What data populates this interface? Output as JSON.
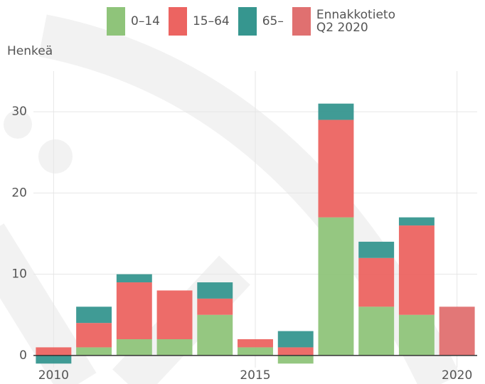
{
  "chart_data": {
    "type": "stacked-bar",
    "y_label": "Henkeä",
    "x": [
      2010,
      2011,
      2012,
      2013,
      2014,
      2015,
      2016,
      2017,
      2018,
      2019,
      2020
    ],
    "series": [
      {
        "name": "0–14",
        "color": "#8fc47a",
        "values": [
          0,
          1,
          2,
          2,
          5,
          1,
          -1,
          17,
          6,
          5,
          null
        ]
      },
      {
        "name": "15–64",
        "color": "#ec6461",
        "values": [
          1,
          3,
          7,
          6,
          2,
          1,
          1,
          12,
          6,
          11,
          null
        ]
      },
      {
        "name": "65–",
        "color": "#36968f",
        "values": [
          -1,
          2,
          1,
          0,
          2,
          0,
          2,
          2,
          2,
          1,
          null
        ]
      },
      {
        "name": "Ennakkotieto\nQ2 2020",
        "color": "#e07070",
        "values": [
          null,
          null,
          null,
          null,
          null,
          null,
          null,
          null,
          null,
          null,
          6
        ]
      }
    ],
    "xlim": [
      2009.5,
      2020.5
    ],
    "xticks": [
      2010,
      2015,
      2020
    ],
    "ylim": [
      -1.5,
      35
    ],
    "yticks": [
      0,
      10,
      20,
      30
    ],
    "grid": true
  }
}
